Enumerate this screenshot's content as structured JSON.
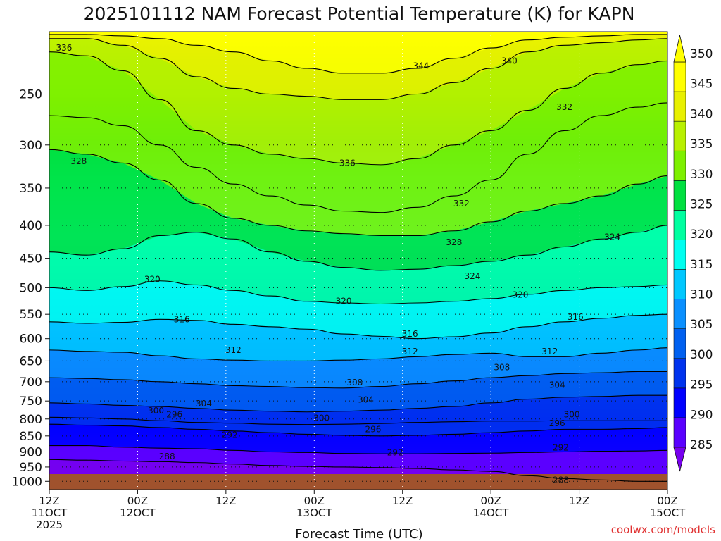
{
  "chart_data": {
    "type": "heatmap",
    "title": "2025101112 NAM Forecast Potential Temperature (K) for KAPN",
    "xlabel": "Forecast Time (UTC)",
    "ylabel": "",
    "credit": "coolwx.com/models",
    "units": "K",
    "x_hours_range": [
      0,
      84
    ],
    "y_levels_range": [
      1000,
      200
    ],
    "x_ticks": [
      {
        "hour": 0,
        "line1": "12Z",
        "line2": "11OCT",
        "line3": "2025"
      },
      {
        "hour": 12,
        "line1": "00Z",
        "line2": "12OCT",
        "line3": ""
      },
      {
        "hour": 24,
        "line1": "12Z",
        "line2": "",
        "line3": ""
      },
      {
        "hour": 36,
        "line1": "00Z",
        "line2": "13OCT",
        "line3": ""
      },
      {
        "hour": 48,
        "line1": "12Z",
        "line2": "",
        "line3": ""
      },
      {
        "hour": 60,
        "line1": "00Z",
        "line2": "14OCT",
        "line3": ""
      },
      {
        "hour": 72,
        "line1": "12Z",
        "line2": "",
        "line3": ""
      },
      {
        "hour": 84,
        "line1": "00Z",
        "line2": "15OCT",
        "line3": ""
      }
    ],
    "y_ticks": [
      {
        "value": 250,
        "label": "250"
      },
      {
        "value": 300,
        "label": "300"
      },
      {
        "value": 350,
        "label": "350"
      },
      {
        "value": 400,
        "label": "400"
      },
      {
        "value": 450,
        "label": "450"
      },
      {
        "value": 500,
        "label": "500"
      },
      {
        "value": 550,
        "label": "550"
      },
      {
        "value": 600,
        "label": "600"
      },
      {
        "value": 650,
        "label": "650"
      },
      {
        "value": 700,
        "label": "700"
      },
      {
        "value": 750,
        "label": "750"
      },
      {
        "value": 800,
        "label": "800"
      },
      {
        "value": 850,
        "label": "850"
      },
      {
        "value": 900,
        "label": "900"
      },
      {
        "value": 950,
        "label": "950"
      },
      {
        "value": 1000,
        "label": "1000"
      }
    ],
    "colorbar": {
      "min": 285,
      "max": 350,
      "step": 5,
      "labels": [
        "285",
        "290",
        "295",
        "300",
        "305",
        "310",
        "315",
        "320",
        "325",
        "330",
        "335",
        "340",
        "345",
        "350"
      ],
      "colors": [
        "#7700ee",
        "#5a00ff",
        "#0000ff",
        "#0033ee",
        "#0060f0",
        "#0a90ff",
        "#00c8ff",
        "#00fff0",
        "#00ffa0",
        "#00e040",
        "#7ef000",
        "#b8f000",
        "#e8f000",
        "#ffff00"
      ]
    },
    "series": [
      {
        "name": "288 K",
        "pressure": [
          925,
          927,
          930,
          932,
          935,
          940,
          945,
          948,
          950,
          952,
          955,
          960,
          965,
          980,
          990,
          995,
          1000,
          1000
        ],
        "hours": [
          0,
          5,
          10,
          15,
          20,
          25,
          30,
          35,
          40,
          45,
          50,
          55,
          60,
          65,
          70,
          75,
          80,
          84
        ]
      },
      {
        "name": "292 K",
        "pressure": [
          880,
          880,
          885,
          888,
          890,
          895,
          900,
          902,
          905,
          906,
          906,
          905,
          904,
          902,
          900,
          898,
          897,
          895
        ],
        "hours": [
          0,
          5,
          10,
          15,
          20,
          25,
          30,
          35,
          40,
          45,
          50,
          55,
          60,
          65,
          70,
          75,
          80,
          84
        ]
      },
      {
        "name": "296 K",
        "pressure": [
          815,
          818,
          820,
          825,
          830,
          835,
          840,
          845,
          848,
          850,
          848,
          845,
          840,
          835,
          830,
          830,
          828,
          825
        ],
        "hours": [
          0,
          5,
          10,
          15,
          20,
          25,
          30,
          35,
          40,
          45,
          50,
          55,
          60,
          65,
          70,
          75,
          80,
          84
        ]
      },
      {
        "name": "300 K",
        "pressure": [
          795,
          797,
          800,
          805,
          810,
          812,
          815,
          816,
          815,
          813,
          810,
          808,
          806,
          806,
          805,
          805,
          805,
          805
        ],
        "hours": [
          0,
          5,
          10,
          15,
          20,
          25,
          30,
          35,
          40,
          45,
          50,
          55,
          60,
          65,
          70,
          75,
          80,
          84
        ]
      },
      {
        "name": "304 K",
        "pressure": [
          755,
          758,
          762,
          765,
          770,
          775,
          778,
          780,
          778,
          775,
          770,
          765,
          755,
          745,
          740,
          738,
          735,
          735
        ],
        "hours": [
          0,
          5,
          10,
          15,
          20,
          25,
          30,
          35,
          40,
          45,
          50,
          55,
          60,
          65,
          70,
          75,
          80,
          84
        ]
      },
      {
        "name": "308 K",
        "pressure": [
          690,
          692,
          695,
          700,
          705,
          710,
          712,
          715,
          716,
          712,
          705,
          698,
          690,
          685,
          680,
          678,
          675,
          675
        ],
        "hours": [
          0,
          5,
          10,
          15,
          20,
          25,
          30,
          35,
          40,
          45,
          50,
          55,
          60,
          65,
          70,
          75,
          80,
          84
        ]
      },
      {
        "name": "312 K",
        "pressure": [
          625,
          628,
          630,
          638,
          645,
          648,
          650,
          650,
          648,
          645,
          640,
          635,
          632,
          640,
          640,
          632,
          625,
          620
        ],
        "hours": [
          0,
          5,
          10,
          15,
          20,
          25,
          30,
          35,
          40,
          45,
          50,
          55,
          60,
          65,
          70,
          75,
          80,
          84
        ]
      },
      {
        "name": "316 K",
        "pressure": [
          565,
          568,
          566,
          560,
          562,
          570,
          575,
          580,
          590,
          595,
          600,
          596,
          588,
          575,
          565,
          558,
          552,
          550
        ],
        "hours": [
          0,
          5,
          10,
          15,
          20,
          25,
          30,
          35,
          40,
          45,
          50,
          55,
          60,
          65,
          70,
          75,
          80,
          84
        ]
      },
      {
        "name": "320 K",
        "pressure": [
          500,
          505,
          498,
          488,
          495,
          505,
          515,
          525,
          528,
          530,
          528,
          525,
          520,
          512,
          505,
          500,
          498,
          495
        ],
        "hours": [
          0,
          5,
          10,
          15,
          20,
          25,
          30,
          35,
          40,
          45,
          50,
          55,
          60,
          65,
          70,
          75,
          80,
          84
        ]
      },
      {
        "name": "324 K",
        "pressure": [
          440,
          445,
          435,
          415,
          410,
          420,
          440,
          455,
          465,
          470,
          468,
          462,
          455,
          445,
          432,
          420,
          410,
          400
        ],
        "hours": [
          0,
          5,
          10,
          15,
          20,
          25,
          30,
          35,
          40,
          45,
          50,
          55,
          60,
          65,
          70,
          75,
          80,
          84
        ]
      },
      {
        "name": "328 K",
        "pressure": [
          305,
          310,
          320,
          340,
          370,
          390,
          400,
          408,
          412,
          415,
          415,
          408,
          395,
          380,
          370,
          360,
          345,
          335
        ],
        "hours": [
          0,
          5,
          10,
          15,
          20,
          25,
          30,
          35,
          40,
          45,
          50,
          55,
          60,
          65,
          70,
          75,
          80,
          84
        ]
      },
      {
        "name": "332 K",
        "pressure": [
          270,
          272,
          280,
          300,
          325,
          345,
          360,
          372,
          380,
          382,
          375,
          360,
          340,
          310,
          285,
          270,
          262,
          258
        ],
        "hours": [
          0,
          5,
          10,
          15,
          20,
          25,
          30,
          35,
          40,
          45,
          50,
          55,
          60,
          65,
          70,
          75,
          80,
          84
        ]
      },
      {
        "name": "336 K",
        "pressure": [
          215,
          218,
          230,
          255,
          285,
          300,
          310,
          315,
          320,
          322,
          315,
          300,
          285,
          265,
          245,
          232,
          225,
          222
        ],
        "hours": [
          0,
          5,
          10,
          15,
          20,
          25,
          30,
          35,
          40,
          45,
          50,
          55,
          60,
          65,
          70,
          75,
          80,
          84
        ]
      },
      {
        "name": "340 K",
        "pressure": [
          205,
          205,
          210,
          220,
          235,
          245,
          250,
          252,
          255,
          255,
          250,
          240,
          228,
          215,
          210,
          208,
          206,
          205
        ],
        "hours": [
          0,
          5,
          10,
          15,
          20,
          25,
          30,
          35,
          40,
          45,
          50,
          55,
          60,
          65,
          70,
          75,
          80,
          84
        ]
      },
      {
        "name": "344 K",
        "pressure": [
          202,
          202,
          203,
          205,
          210,
          215,
          222,
          228,
          232,
          232,
          228,
          220,
          212,
          206,
          204,
          203,
          202,
          202
        ],
        "hours": [
          0,
          5,
          10,
          15,
          20,
          25,
          30,
          35,
          40,
          45,
          50,
          55,
          60,
          65,
          70,
          75,
          80,
          84
        ]
      }
    ],
    "contour_labels": [
      {
        "text": "336",
        "hour": 2,
        "pressure": 212
      },
      {
        "text": "344",
        "hour": 50.5,
        "pressure": 226
      },
      {
        "text": "340",
        "hour": 62.5,
        "pressure": 222
      },
      {
        "text": "332",
        "hour": 70,
        "pressure": 262
      },
      {
        "text": "328",
        "hour": 4,
        "pressure": 318
      },
      {
        "text": "336",
        "hour": 40.5,
        "pressure": 320
      },
      {
        "text": "332",
        "hour": 56,
        "pressure": 370
      },
      {
        "text": "328",
        "hour": 55,
        "pressure": 425
      },
      {
        "text": "324",
        "hour": 76.5,
        "pressure": 417
      },
      {
        "text": "324",
        "hour": 57.5,
        "pressure": 480
      },
      {
        "text": "320",
        "hour": 14,
        "pressure": 485
      },
      {
        "text": "320",
        "hour": 40,
        "pressure": 525
      },
      {
        "text": "320",
        "hour": 64,
        "pressure": 513
      },
      {
        "text": "316",
        "hour": 18,
        "pressure": 560
      },
      {
        "text": "316",
        "hour": 49,
        "pressure": 590
      },
      {
        "text": "316",
        "hour": 71.5,
        "pressure": 555
      },
      {
        "text": "312",
        "hour": 25,
        "pressure": 625
      },
      {
        "text": "312",
        "hour": 49,
        "pressure": 628
      },
      {
        "text": "312",
        "hour": 68,
        "pressure": 628
      },
      {
        "text": "308",
        "hour": 41.5,
        "pressure": 702
      },
      {
        "text": "308",
        "hour": 61.5,
        "pressure": 665
      },
      {
        "text": "304",
        "hour": 21,
        "pressure": 757
      },
      {
        "text": "304",
        "hour": 43,
        "pressure": 747
      },
      {
        "text": "304",
        "hour": 69,
        "pressure": 708
      },
      {
        "text": "300",
        "hour": 14.5,
        "pressure": 777
      },
      {
        "text": "300",
        "hour": 37,
        "pressure": 797
      },
      {
        "text": "300",
        "hour": 71,
        "pressure": 787
      },
      {
        "text": "296",
        "hour": 17,
        "pressure": 787
      },
      {
        "text": "296",
        "hour": 44,
        "pressure": 830
      },
      {
        "text": "296",
        "hour": 69,
        "pressure": 813
      },
      {
        "text": "292",
        "hour": 24.5,
        "pressure": 847
      },
      {
        "text": "292",
        "hour": 47,
        "pressure": 902
      },
      {
        "text": "292",
        "hour": 69.5,
        "pressure": 887
      },
      {
        "text": "288",
        "hour": 16,
        "pressure": 915
      },
      {
        "text": "288",
        "hour": 69.5,
        "pressure": 995
      }
    ]
  }
}
